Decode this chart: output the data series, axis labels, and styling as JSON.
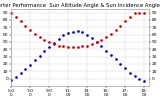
{
  "title": "Solar PV/Inverter Performance  Sun Altitude Angle & Sun Incidence Angle on PV Panels",
  "bg_color": "#ffffff",
  "plot_bg_color": "#ffffff",
  "grid_color": "#aaaaaa",
  "title_color": "#000000",
  "tick_color": "#000000",
  "sun_altitude_color": "#0000cc",
  "sun_incidence_color": "#cc0000",
  "x_hours": [
    5.0,
    5.5,
    6.0,
    6.5,
    7.0,
    7.5,
    8.0,
    8.5,
    9.0,
    9.5,
    10.0,
    10.5,
    11.0,
    11.5,
    12.0,
    12.5,
    13.0,
    13.5,
    14.0,
    14.5,
    15.0,
    15.5,
    16.0,
    16.5,
    17.0,
    17.5,
    18.0,
    18.5,
    19.0
  ],
  "sun_altitude": [
    -2,
    2,
    7,
    13,
    19,
    25,
    31,
    37,
    43,
    49,
    54,
    59,
    62,
    64,
    65,
    63,
    60,
    55,
    50,
    44,
    38,
    32,
    26,
    20,
    14,
    8,
    3,
    -1,
    -3
  ],
  "sun_incidence": [
    90,
    84,
    78,
    72,
    66,
    61,
    57,
    53,
    50,
    47,
    45,
    44,
    43,
    43,
    43,
    44,
    45,
    47,
    50,
    53,
    57,
    61,
    66,
    72,
    78,
    84,
    90,
    90,
    90
  ],
  "xlim": [
    5.0,
    19.5
  ],
  "ylim": [
    -10,
    95
  ],
  "yticks": [
    0,
    10,
    20,
    30,
    40,
    50,
    60,
    70,
    80,
    90
  ],
  "xtick_labels": [
    "5:0\\n0",
    "7:0\\n0",
    "9:0\\n0",
    "11:\\n00",
    "13:\\n00",
    "15:\\n00",
    "17:\\n00",
    "19:\\n00"
  ],
  "xtick_positions": [
    5,
    7,
    9,
    11,
    13,
    15,
    17,
    19
  ],
  "marker_size": 1.8,
  "title_fontsize": 3.8,
  "tick_fontsize": 3.2
}
